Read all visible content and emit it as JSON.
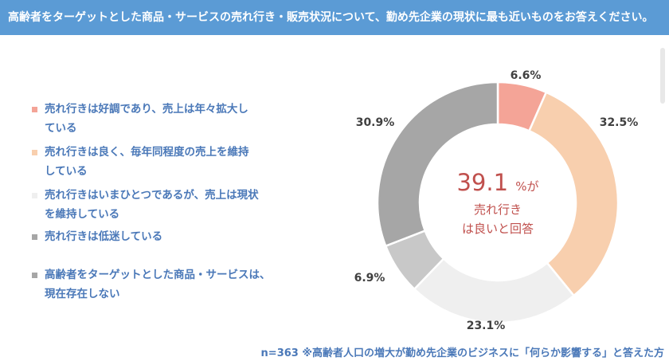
{
  "header": {
    "title": "高齢者をターゲットとした商品・サービスの売れ行き・販売状況について、勤め先企業の現状に最も近いものをお答えください。"
  },
  "chart_data": {
    "type": "pie",
    "donut": true,
    "categories": [
      "売れ行きは好調であり、売上は年々拡大している",
      "売れ行きは良く、毎年同程度の売上を維持している",
      "売れ行きはいまひとつであるが、売上は現状を維持している",
      "売れ行きは低迷している",
      "高齢者をターゲットとした商品・サービスは、現在存在しない"
    ],
    "values": [
      6.6,
      32.5,
      23.1,
      6.9,
      30.9
    ],
    "data_labels": [
      "6.6%",
      "32.5%",
      "23.1%",
      "6.9%",
      "30.9%"
    ],
    "colors": [
      "#f4a497",
      "#f8cfae",
      "#efefef",
      "#c8c8c8",
      "#a6a6a6"
    ],
    "legend_position": "left",
    "center": {
      "big": "39.1",
      "suffix": "%が",
      "line1": "売れ行き",
      "line2": "は良いと回答"
    }
  },
  "legend": {
    "items": [
      {
        "lines": [
          "売れ行きは好調であり、売上は年々拡大し",
          "ている"
        ]
      },
      {
        "lines": [
          "売れ行きは良く、毎年同程度の売上を維持",
          "している"
        ]
      },
      {
        "lines": [
          "売れ行きはいまひとつであるが、売上は現状",
          "を維持している"
        ]
      },
      {
        "lines": [
          "売れ行きは低迷している"
        ]
      },
      {
        "lines": [
          "高齢者をターゲットとした商品・サービスは、",
          "現在存在しない"
        ]
      }
    ]
  },
  "footnote": "n=363 ※高齢者人口の増大が勤め先企業のビジネスに「何らか影響する」と答えた方"
}
